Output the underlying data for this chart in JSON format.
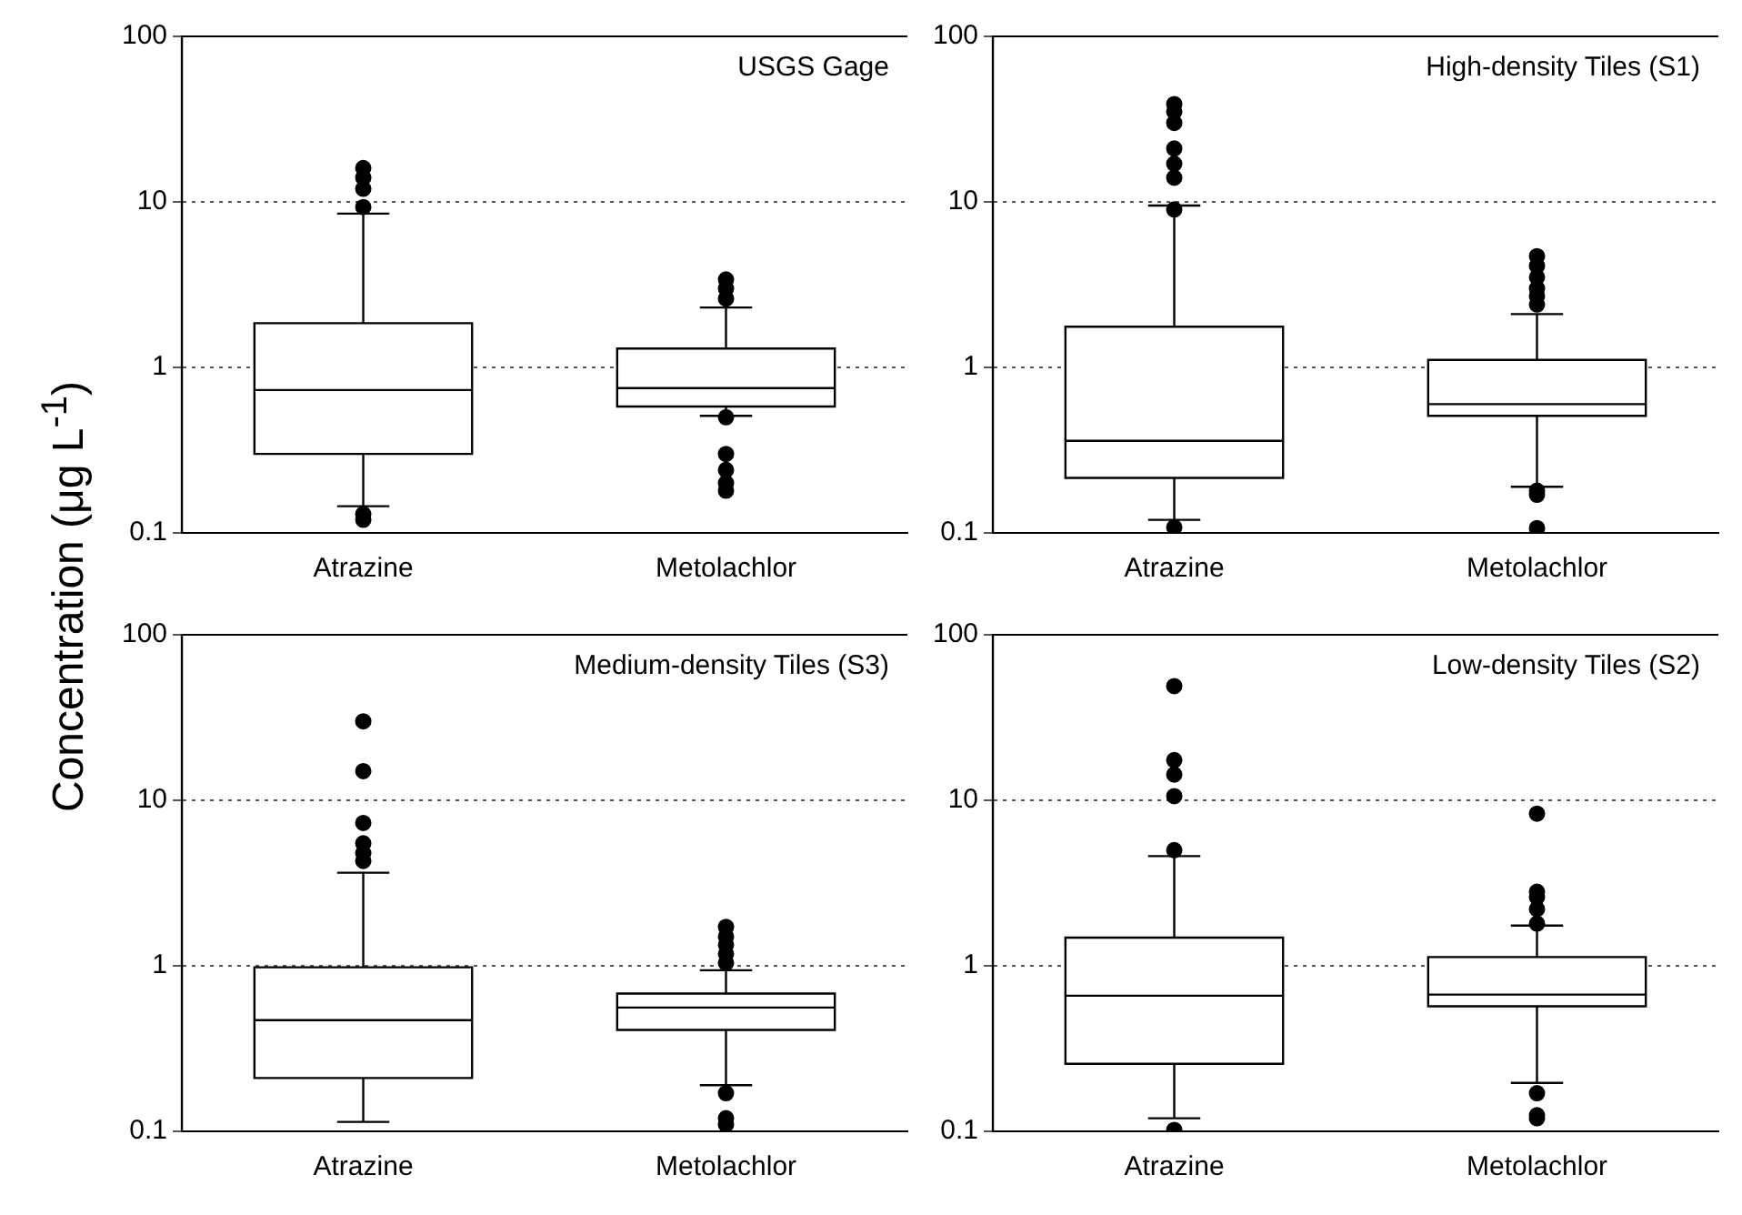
{
  "chart_data": [
    {
      "type": "box",
      "title": "USGS Gage",
      "ylabel": "Concentration (μg L$^{-1}$)",
      "categories": [
        "Atrazine",
        "Metolachlor"
      ],
      "log": "y",
      "grid": "y",
      "ylim": [
        0.1,
        100
      ],
      "yticks": [
        0.1,
        1,
        10,
        100
      ],
      "boxes": [
        {
          "low": 0.145,
          "q1": 0.3,
          "median": 0.73,
          "q3": 1.85,
          "high": 8.5,
          "outliers": [
            0.12,
            0.13,
            9.3,
            12,
            14,
            16
          ]
        },
        {
          "low": 0.51,
          "q1": 0.58,
          "median": 0.75,
          "q3": 1.3,
          "high": 2.3,
          "outliers": [
            0.18,
            0.2,
            0.24,
            0.3,
            0.5,
            2.6,
            3.0,
            3.4
          ]
        }
      ]
    },
    {
      "type": "box",
      "title": "High-density Tiles (S1)",
      "categories": [
        "Atrazine",
        "Metolachlor"
      ],
      "log": "y",
      "grid": "y",
      "ylim": [
        0.1,
        100
      ],
      "yticks": [
        0.1,
        1,
        10,
        100
      ],
      "boxes": [
        {
          "low": 0.12,
          "q1": 0.215,
          "median": 0.36,
          "q3": 1.76,
          "high": 9.5,
          "outliers": [
            0.108,
            9,
            14,
            17,
            21,
            30,
            35,
            39
          ]
        },
        {
          "low": 0.19,
          "q1": 0.51,
          "median": 0.6,
          "q3": 1.11,
          "high": 2.1,
          "outliers": [
            0.107,
            0.17,
            0.18,
            2.4,
            2.7,
            3.0,
            3.5,
            4.1,
            4.7
          ]
        }
      ]
    },
    {
      "type": "box",
      "title": "Medium-density Tiles (S3)",
      "categories": [
        "Atrazine",
        "Metolachlor"
      ],
      "log": "y",
      "grid": "y",
      "ylim": [
        0.1,
        100
      ],
      "yticks": [
        0.1,
        1,
        10,
        100
      ],
      "boxes": [
        {
          "low": 0.114,
          "q1": 0.21,
          "median": 0.47,
          "q3": 0.98,
          "high": 3.65,
          "outliers": [
            4.3,
            4.8,
            5.5,
            7.3,
            15,
            30
          ]
        },
        {
          "low": 0.19,
          "q1": 0.41,
          "median": 0.56,
          "q3": 0.68,
          "high": 0.94,
          "outliers": [
            0.11,
            0.12,
            0.17,
            1.04,
            1.18,
            1.34,
            1.5,
            1.72
          ]
        }
      ]
    },
    {
      "type": "box",
      "title": "Low-density Tiles (S2)",
      "categories": [
        "Atrazine",
        "Metolachlor"
      ],
      "log": "y",
      "grid": "y",
      "ylim": [
        0.1,
        100
      ],
      "yticks": [
        0.1,
        1,
        10,
        100
      ],
      "boxes": [
        {
          "low": 0.12,
          "q1": 0.256,
          "median": 0.66,
          "q3": 1.48,
          "high": 4.6,
          "outliers": [
            0.102,
            5.0,
            10.6,
            14.3,
            17.5,
            49
          ]
        },
        {
          "low": 0.196,
          "q1": 0.57,
          "median": 0.67,
          "q3": 1.13,
          "high": 1.75,
          "outliers": [
            0.12,
            0.125,
            0.17,
            1.8,
            2.2,
            2.6,
            2.8,
            8.3
          ]
        }
      ]
    }
  ]
}
